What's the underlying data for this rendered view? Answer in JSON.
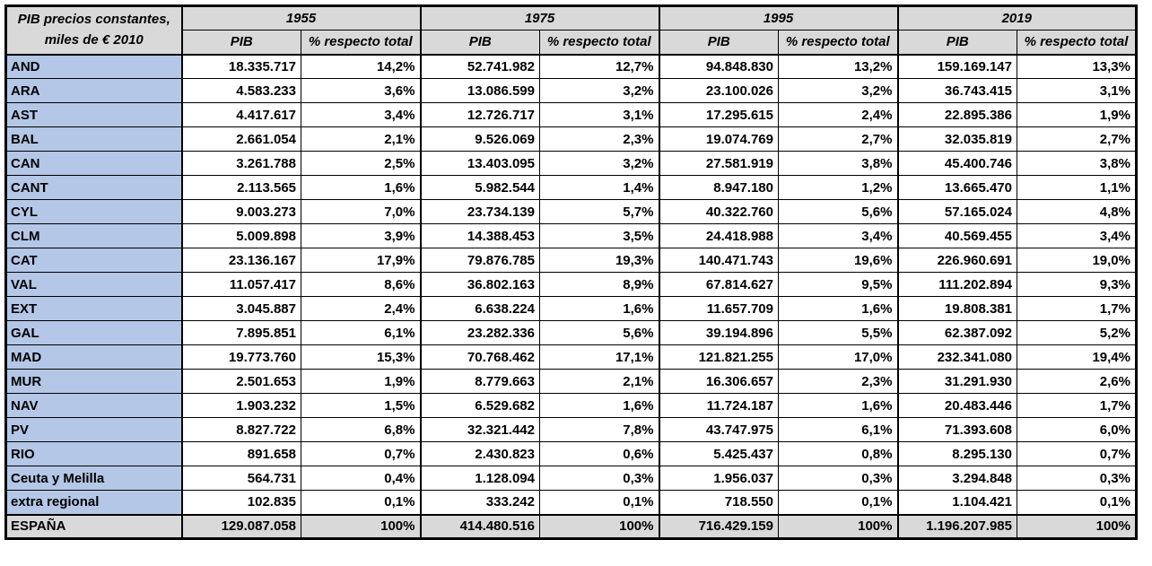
{
  "colors": {
    "header_bg": "#d9d9d9",
    "region_bg": "#b4c7e7",
    "total_bg": "#d9d9d9",
    "border": "#000000",
    "text": "#000000"
  },
  "chart_data": {
    "type": "table",
    "title": "PIB precios constantes, miles de € 2010",
    "corner": {
      "line1": "PIB precios constantes,",
      "line2": "miles de € 2010"
    },
    "year_groups": [
      "1955",
      "1975",
      "1995",
      "2019"
    ],
    "sub_headers": {
      "pib": "PIB",
      "pct": "% respecto total"
    },
    "rows": [
      {
        "region": "AND",
        "values": [
          "18.335.717",
          "14,2%",
          "52.741.982",
          "12,7%",
          "94.848.830",
          "13,2%",
          "159.169.147",
          "13,3%"
        ]
      },
      {
        "region": "ARA",
        "values": [
          "4.583.233",
          "3,6%",
          "13.086.599",
          "3,2%",
          "23.100.026",
          "3,2%",
          "36.743.415",
          "3,1%"
        ]
      },
      {
        "region": "AST",
        "values": [
          "4.417.617",
          "3,4%",
          "12.726.717",
          "3,1%",
          "17.295.615",
          "2,4%",
          "22.895.386",
          "1,9%"
        ]
      },
      {
        "region": "BAL",
        "values": [
          "2.661.054",
          "2,1%",
          "9.526.069",
          "2,3%",
          "19.074.769",
          "2,7%",
          "32.035.819",
          "2,7%"
        ]
      },
      {
        "region": "CAN",
        "values": [
          "3.261.788",
          "2,5%",
          "13.403.095",
          "3,2%",
          "27.581.919",
          "3,8%",
          "45.400.746",
          "3,8%"
        ]
      },
      {
        "region": "CANT",
        "values": [
          "2.113.565",
          "1,6%",
          "5.982.544",
          "1,4%",
          "8.947.180",
          "1,2%",
          "13.665.470",
          "1,1%"
        ]
      },
      {
        "region": "CYL",
        "values": [
          "9.003.273",
          "7,0%",
          "23.734.139",
          "5,7%",
          "40.322.760",
          "5,6%",
          "57.165.024",
          "4,8%"
        ]
      },
      {
        "region": "CLM",
        "values": [
          "5.009.898",
          "3,9%",
          "14.388.453",
          "3,5%",
          "24.418.988",
          "3,4%",
          "40.569.455",
          "3,4%"
        ]
      },
      {
        "region": "CAT",
        "values": [
          "23.136.167",
          "17,9%",
          "79.876.785",
          "19,3%",
          "140.471.743",
          "19,6%",
          "226.960.691",
          "19,0%"
        ]
      },
      {
        "region": "VAL",
        "values": [
          "11.057.417",
          "8,6%",
          "36.802.163",
          "8,9%",
          "67.814.627",
          "9,5%",
          "111.202.894",
          "9,3%"
        ]
      },
      {
        "region": "EXT",
        "values": [
          "3.045.887",
          "2,4%",
          "6.638.224",
          "1,6%",
          "11.657.709",
          "1,6%",
          "19.808.381",
          "1,7%"
        ]
      },
      {
        "region": "GAL",
        "values": [
          "7.895.851",
          "6,1%",
          "23.282.336",
          "5,6%",
          "39.194.896",
          "5,5%",
          "62.387.092",
          "5,2%"
        ]
      },
      {
        "region": "MAD",
        "values": [
          "19.773.760",
          "15,3%",
          "70.768.462",
          "17,1%",
          "121.821.255",
          "17,0%",
          "232.341.080",
          "19,4%"
        ]
      },
      {
        "region": "MUR",
        "values": [
          "2.501.653",
          "1,9%",
          "8.779.663",
          "2,1%",
          "16.306.657",
          "2,3%",
          "31.291.930",
          "2,6%"
        ]
      },
      {
        "region": "NAV",
        "values": [
          "1.903.232",
          "1,5%",
          "6.529.682",
          "1,6%",
          "11.724.187",
          "1,6%",
          "20.483.446",
          "1,7%"
        ]
      },
      {
        "region": "PV",
        "values": [
          "8.827.722",
          "6,8%",
          "32.321.442",
          "7,8%",
          "43.747.975",
          "6,1%",
          "71.393.608",
          "6,0%"
        ]
      },
      {
        "region": "RIO",
        "values": [
          "891.658",
          "0,7%",
          "2.430.823",
          "0,6%",
          "5.425.437",
          "0,8%",
          "8.295.130",
          "0,7%"
        ]
      },
      {
        "region": "Ceuta y Melilla",
        "values": [
          "564.731",
          "0,4%",
          "1.128.094",
          "0,3%",
          "1.956.037",
          "0,3%",
          "3.294.848",
          "0,3%"
        ]
      },
      {
        "region": "extra regional",
        "values": [
          "102.835",
          "0,1%",
          "333.242",
          "0,1%",
          "718.550",
          "0,1%",
          "1.104.421",
          "0,1%"
        ]
      }
    ],
    "total_row": {
      "region": "ESPAÑA",
      "values": [
        "129.087.058",
        "100%",
        "414.480.516",
        "100%",
        "716.429.159",
        "100%",
        "1.196.207.985",
        "100%"
      ]
    }
  }
}
